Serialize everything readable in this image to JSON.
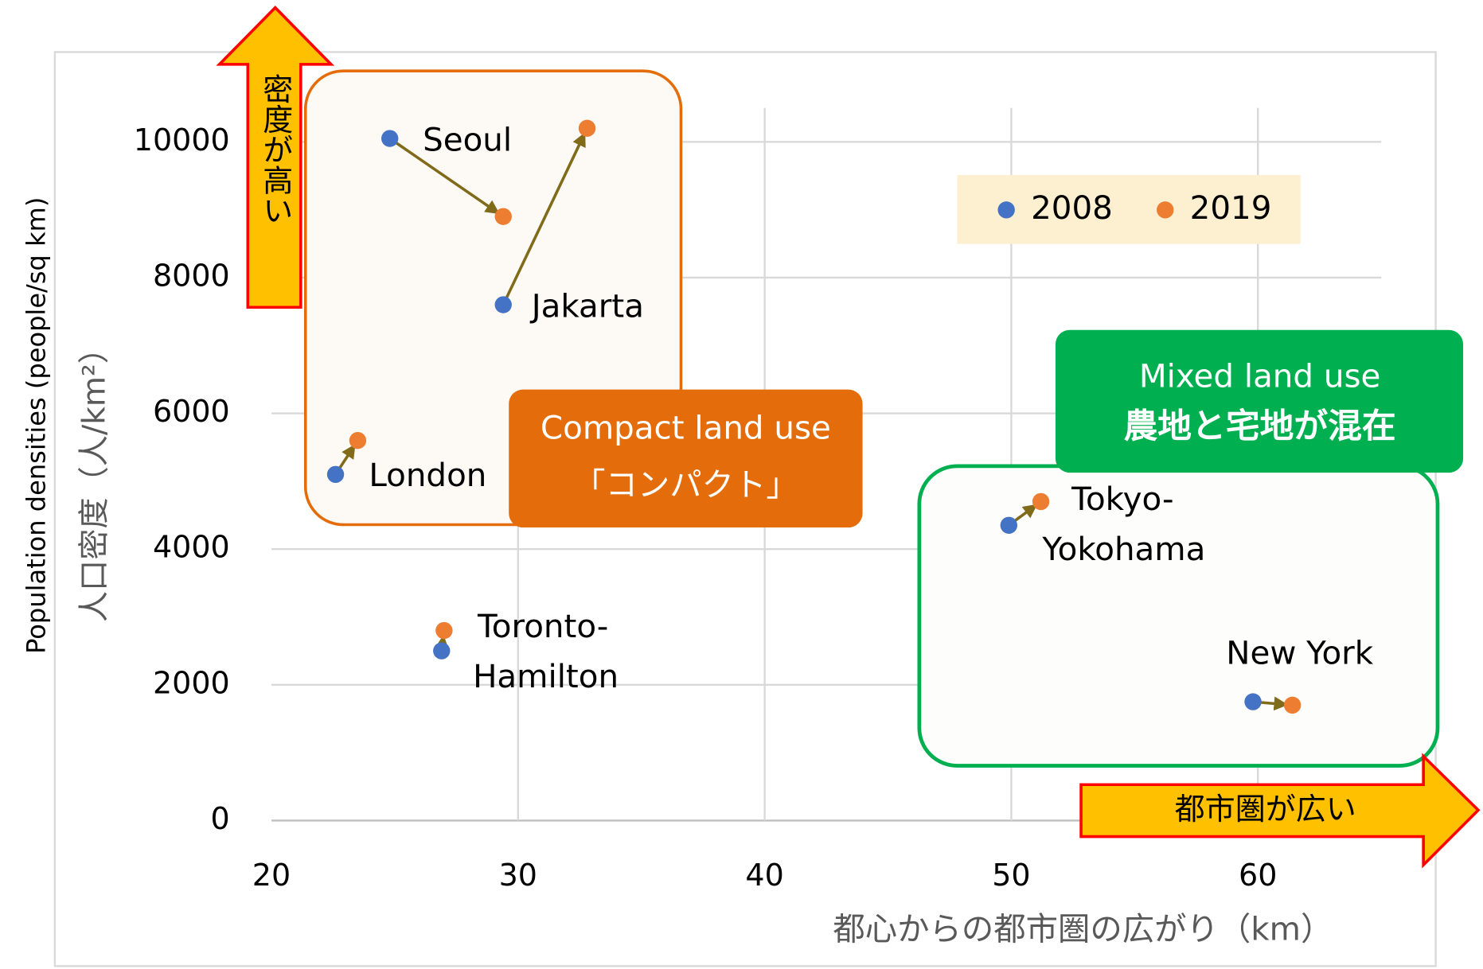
{
  "chart_data": {
    "type": "scatter",
    "ylabel": "Population densities (people/sq km)",
    "ylabel2": "人口密度（人/km²）",
    "xlabel": "都心からの都市圏の広がり（km）",
    "xlim": [
      20,
      65
    ],
    "ylim": [
      0,
      10500
    ],
    "xticks": [
      20,
      30,
      40,
      50,
      60
    ],
    "yticks": [
      0,
      2000,
      4000,
      6000,
      8000,
      10000
    ],
    "grid": true,
    "labels": [
      [
        "Seoul"
      ],
      [
        "Jakarta"
      ],
      [
        "London"
      ],
      [
        "Toronto-",
        "Hamilton"
      ],
      [
        "Tokyo-",
        "Yokohama"
      ],
      [
        "New York"
      ]
    ],
    "series": [
      {
        "name": "2008",
        "color": "#4472c4",
        "x": [
          24.8,
          29.4,
          22.6,
          26.9,
          49.9,
          59.8
        ],
        "values": [
          10050,
          7600,
          5100,
          2500,
          4350,
          1750
        ]
      },
      {
        "name": "2019",
        "color": "#ed7d31",
        "x": [
          29.4,
          32.8,
          23.5,
          27.0,
          51.2,
          61.4
        ],
        "values": [
          8900,
          10200,
          5600,
          2800,
          4700,
          1700
        ]
      }
    ],
    "annotations": {
      "up_arrow": "密度が高い",
      "right_arrow": "都市圏が広い",
      "compact": [
        "Compact land use",
        "「コンパクト」"
      ],
      "mixed": [
        "Mixed land use",
        "農地と宅地が混在"
      ]
    }
  }
}
